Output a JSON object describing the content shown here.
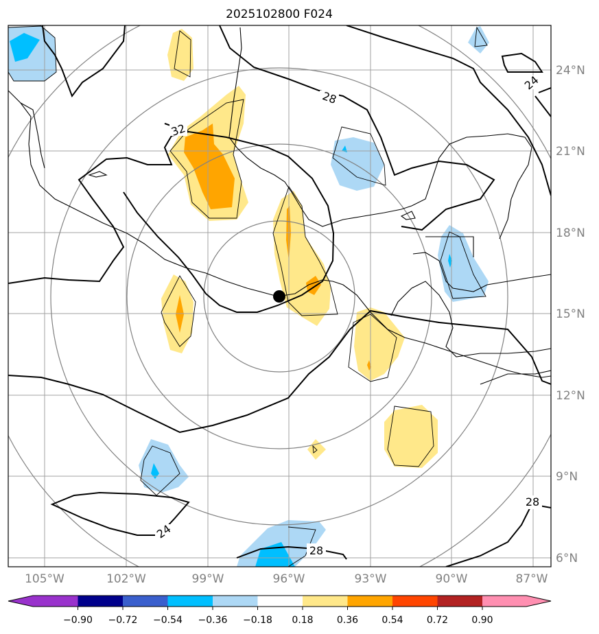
{
  "title": "2025102800 F024",
  "lat_labels": [
    "24°N",
    "21°N",
    "18°N",
    "15°N",
    "12°N",
    "9°N",
    "6°N"
  ],
  "lon_labels": [
    "105°W",
    "102°W",
    "99°W",
    "96°W",
    "93°W",
    "90°W",
    "87°W"
  ],
  "contour_labels": [
    "32",
    "28",
    "24",
    "24",
    "28",
    "28"
  ],
  "colorbar": {
    "ticks": [
      "−0.90",
      "−0.72",
      "−0.54",
      "−0.36",
      "−0.18",
      "0.18",
      "0.36",
      "0.54",
      "0.72",
      "0.90"
    ],
    "colors": [
      "#9932cc",
      "#00008b",
      "#3a5fcd",
      "#00bfff",
      "#add8f5",
      "#ffffff",
      "#ffe88a",
      "#ffa500",
      "#ff4500",
      "#b22222",
      "#ff8fb1"
    ]
  },
  "marker": {
    "label": "storm-center",
    "lat": 15.6,
    "lon": -96.3
  }
}
